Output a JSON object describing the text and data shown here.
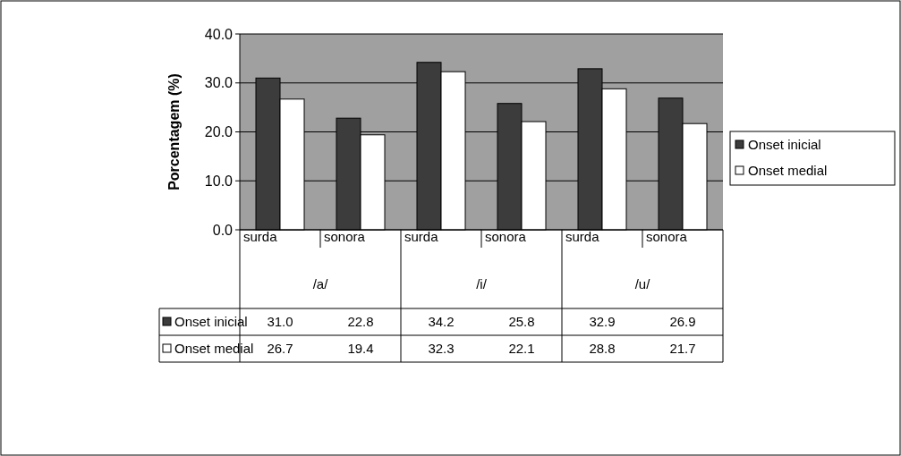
{
  "chart_data": {
    "type": "bar",
    "ylabel": "Porcentagem (%)",
    "categories": [
      "surda",
      "sonora",
      "surda",
      "sonora",
      "surda",
      "sonora"
    ],
    "annotations": [
      "/a/",
      "/i/",
      "/u/"
    ],
    "series": [
      {
        "name": "Onset inicial",
        "color": "#3c3c3c",
        "values": [
          31.0,
          22.8,
          34.2,
          25.8,
          32.9,
          26.9
        ],
        "value_labels": [
          "31.0",
          "22.8",
          "34.2",
          "25.8",
          "32.9",
          "26.9"
        ]
      },
      {
        "name": "Onset medial",
        "color": "#ffffff",
        "values": [
          26.7,
          19.4,
          32.3,
          22.1,
          28.8,
          21.7
        ],
        "value_labels": [
          "26.7",
          "19.4",
          "32.3",
          "22.1",
          "28.8",
          "21.7"
        ]
      }
    ],
    "ylim": [
      0,
      40
    ],
    "yticks": [
      {
        "value": 0,
        "label": "0.0"
      },
      {
        "value": 10,
        "label": "10.0"
      },
      {
        "value": 20,
        "label": "20.0"
      },
      {
        "value": 30,
        "label": "30.0"
      },
      {
        "value": 40,
        "label": "40.0"
      }
    ],
    "grid": "y",
    "legend": "right"
  }
}
